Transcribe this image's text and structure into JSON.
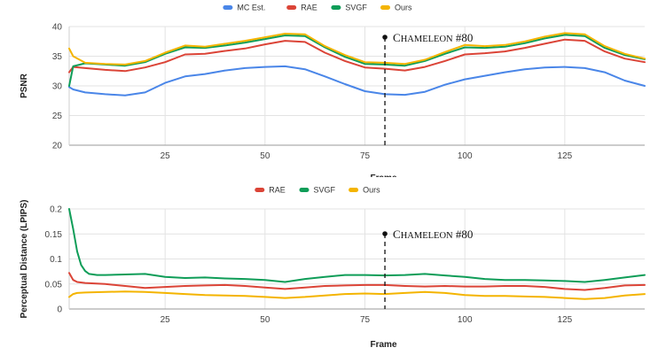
{
  "chart_data": [
    {
      "type": "line",
      "title": "",
      "xlabel": "Frame",
      "ylabel": "PSNR",
      "xlim": [
        1,
        145
      ],
      "ylim": [
        20,
        40
      ],
      "xticks": [
        25,
        50,
        75,
        100,
        125
      ],
      "yticks": [
        20,
        25,
        30,
        35,
        40
      ],
      "grid": true,
      "legend_position": "top-center",
      "annotation": {
        "label": "Chameleon #80",
        "x": 80,
        "y": 38.2
      },
      "series": [
        {
          "name": "MC Est.",
          "color": "#4a86e8",
          "x": [
            1,
            2,
            5,
            10,
            15,
            20,
            25,
            30,
            35,
            40,
            45,
            50,
            55,
            60,
            65,
            70,
            75,
            80,
            85,
            90,
            95,
            100,
            105,
            110,
            115,
            120,
            125,
            130,
            135,
            140,
            145
          ],
          "values": [
            29.8,
            29.4,
            28.9,
            28.6,
            28.4,
            28.9,
            30.5,
            31.6,
            32.0,
            32.6,
            33.0,
            33.2,
            33.3,
            32.8,
            31.6,
            30.3,
            29.1,
            28.6,
            28.5,
            29.0,
            30.2,
            31.1,
            31.7,
            32.3,
            32.8,
            33.1,
            33.2,
            33.0,
            32.3,
            30.9,
            30.0
          ]
        },
        {
          "name": "RAE",
          "color": "#db4437",
          "x": [
            1,
            2,
            5,
            10,
            15,
            20,
            25,
            30,
            35,
            40,
            45,
            50,
            55,
            60,
            65,
            70,
            75,
            80,
            85,
            90,
            95,
            100,
            105,
            110,
            115,
            120,
            125,
            130,
            135,
            140,
            145
          ],
          "values": [
            32.3,
            33.2,
            33.0,
            32.7,
            32.5,
            33.1,
            34.0,
            35.3,
            35.4,
            35.9,
            36.3,
            37.0,
            37.6,
            37.4,
            35.6,
            34.2,
            33.1,
            32.9,
            32.6,
            33.2,
            34.2,
            35.3,
            35.5,
            35.8,
            36.4,
            37.1,
            37.8,
            37.6,
            35.8,
            34.6,
            34.0
          ]
        },
        {
          "name": "SVGF",
          "color": "#0f9d58",
          "x": [
            1,
            2,
            5,
            10,
            15,
            20,
            25,
            30,
            35,
            40,
            45,
            50,
            55,
            60,
            65,
            70,
            75,
            80,
            85,
            90,
            95,
            100,
            105,
            110,
            115,
            120,
            125,
            130,
            135,
            140,
            145
          ],
          "values": [
            30.0,
            33.3,
            33.8,
            33.6,
            33.4,
            34.0,
            35.4,
            36.5,
            36.4,
            36.8,
            37.3,
            37.9,
            38.5,
            38.4,
            36.5,
            34.9,
            33.7,
            33.6,
            33.4,
            34.2,
            35.4,
            36.5,
            36.4,
            36.6,
            37.2,
            38.0,
            38.6,
            38.4,
            36.4,
            35.2,
            34.5
          ]
        },
        {
          "name": "Ours",
          "color": "#f4b400",
          "x": [
            1,
            2,
            5,
            10,
            15,
            20,
            25,
            30,
            35,
            40,
            45,
            50,
            55,
            60,
            65,
            70,
            75,
            80,
            85,
            90,
            95,
            100,
            105,
            110,
            115,
            120,
            125,
            130,
            135,
            140,
            145
          ],
          "values": [
            36.3,
            35.0,
            33.9,
            33.7,
            33.6,
            34.2,
            35.6,
            36.8,
            36.6,
            37.1,
            37.6,
            38.2,
            38.8,
            38.7,
            36.7,
            35.2,
            34.0,
            33.9,
            33.7,
            34.4,
            35.7,
            36.9,
            36.7,
            36.9,
            37.5,
            38.3,
            38.9,
            38.7,
            36.7,
            35.4,
            34.6
          ]
        }
      ]
    },
    {
      "type": "line",
      "title": "",
      "xlabel": "Frame",
      "ylabel": "Perceptual Distance (LPIPS)",
      "xlim": [
        1,
        145
      ],
      "ylim": [
        0,
        0.2
      ],
      "xticks": [
        25,
        50,
        75,
        100,
        125
      ],
      "yticks": [
        0,
        0.05,
        0.1,
        0.15,
        0.2
      ],
      "ytick_labels": [
        "0",
        "0.05",
        "0.1",
        "0.15",
        "0.2"
      ],
      "grid": true,
      "legend_position": "top-center",
      "annotation": {
        "label": "Chameleon #80",
        "x": 80,
        "y": 0.152
      },
      "series": [
        {
          "name": "RAE",
          "color": "#db4437",
          "x": [
            1,
            2,
            3,
            5,
            10,
            15,
            20,
            25,
            30,
            35,
            40,
            45,
            50,
            55,
            60,
            65,
            70,
            75,
            80,
            85,
            90,
            95,
            100,
            105,
            110,
            115,
            120,
            125,
            130,
            135,
            140,
            145
          ],
          "values": [
            0.072,
            0.058,
            0.054,
            0.052,
            0.05,
            0.046,
            0.042,
            0.044,
            0.046,
            0.047,
            0.048,
            0.046,
            0.043,
            0.04,
            0.043,
            0.046,
            0.047,
            0.048,
            0.048,
            0.046,
            0.045,
            0.046,
            0.045,
            0.045,
            0.046,
            0.046,
            0.044,
            0.04,
            0.038,
            0.042,
            0.047,
            0.048
          ]
        },
        {
          "name": "SVGF",
          "color": "#0f9d58",
          "x": [
            1,
            2,
            3,
            4,
            5,
            6,
            8,
            10,
            15,
            20,
            25,
            30,
            35,
            40,
            45,
            50,
            55,
            60,
            65,
            70,
            75,
            80,
            85,
            90,
            95,
            100,
            105,
            110,
            115,
            120,
            125,
            130,
            135,
            140,
            145
          ],
          "values": [
            0.2,
            0.16,
            0.115,
            0.088,
            0.076,
            0.07,
            0.068,
            0.068,
            0.069,
            0.07,
            0.064,
            0.062,
            0.063,
            0.061,
            0.06,
            0.058,
            0.054,
            0.06,
            0.064,
            0.068,
            0.068,
            0.067,
            0.068,
            0.07,
            0.067,
            0.064,
            0.06,
            0.058,
            0.058,
            0.057,
            0.056,
            0.054,
            0.058,
            0.063,
            0.068
          ]
        },
        {
          "name": "Ours",
          "color": "#f4b400",
          "x": [
            1,
            2,
            3,
            5,
            10,
            15,
            20,
            25,
            30,
            35,
            40,
            45,
            50,
            55,
            60,
            65,
            70,
            75,
            80,
            85,
            90,
            95,
            100,
            105,
            110,
            115,
            120,
            125,
            130,
            135,
            140,
            145
          ],
          "values": [
            0.024,
            0.03,
            0.032,
            0.033,
            0.034,
            0.035,
            0.034,
            0.032,
            0.03,
            0.028,
            0.027,
            0.026,
            0.024,
            0.022,
            0.024,
            0.027,
            0.03,
            0.031,
            0.03,
            0.032,
            0.034,
            0.032,
            0.028,
            0.026,
            0.026,
            0.025,
            0.024,
            0.022,
            0.02,
            0.022,
            0.027,
            0.03
          ]
        }
      ]
    }
  ]
}
